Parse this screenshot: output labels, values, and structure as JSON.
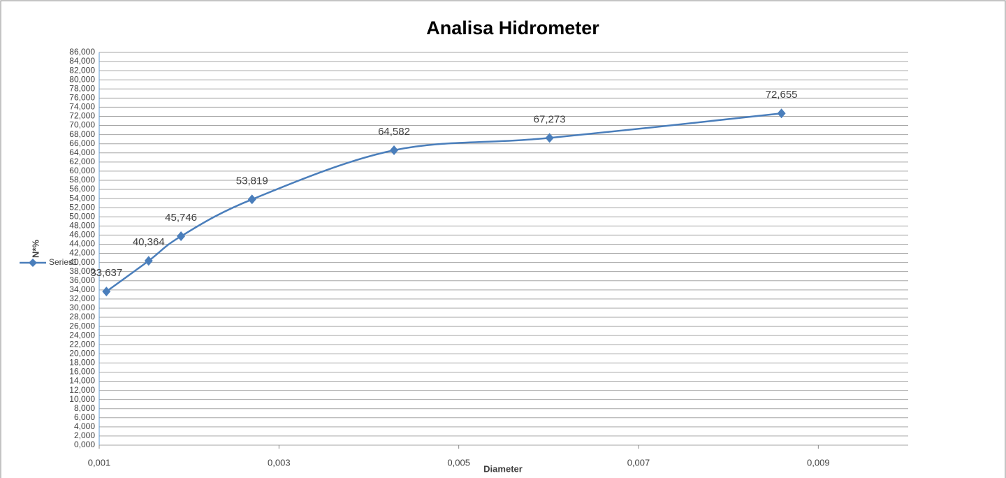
{
  "chart_data": {
    "type": "line",
    "title": "Analisa Hidrometer",
    "xlabel": "Diameter",
    "ylabel": "N*%",
    "x": [
      0.00108,
      0.00155,
      0.00191,
      0.0027,
      0.00428,
      0.00601,
      0.00859
    ],
    "series": [
      {
        "name": "Series1",
        "color": "#4a7ebb",
        "values": [
          33.637,
          40.364,
          45.746,
          53.819,
          64.582,
          67.273,
          72.655
        ],
        "value_labels": [
          "33,637",
          "40,364",
          "45,746",
          "53,819",
          "64,582",
          "67,273",
          "72,655"
        ]
      }
    ],
    "xlim": [
      0.001,
      0.01
    ],
    "xticks": [
      {
        "value": 0.001,
        "label": "0,001"
      },
      {
        "value": 0.003,
        "label": "0,003"
      },
      {
        "value": 0.005,
        "label": "0,005"
      },
      {
        "value": 0.007,
        "label": "0,007"
      },
      {
        "value": 0.009,
        "label": "0,009"
      }
    ],
    "ylim": [
      0,
      86
    ],
    "yticks": [
      {
        "value": 0,
        "label": "0,000"
      },
      {
        "value": 2,
        "label": "2,000"
      },
      {
        "value": 4,
        "label": "4,000"
      },
      {
        "value": 6,
        "label": "6,000"
      },
      {
        "value": 8,
        "label": "8,000"
      },
      {
        "value": 10,
        "label": "10,000"
      },
      {
        "value": 12,
        "label": "12,000"
      },
      {
        "value": 14,
        "label": "14,000"
      },
      {
        "value": 16,
        "label": "16,000"
      },
      {
        "value": 18,
        "label": "18,000"
      },
      {
        "value": 20,
        "label": "20,000"
      },
      {
        "value": 22,
        "label": "22,000"
      },
      {
        "value": 24,
        "label": "24,000"
      },
      {
        "value": 26,
        "label": "26,000"
      },
      {
        "value": 28,
        "label": "28,000"
      },
      {
        "value": 30,
        "label": "30,000"
      },
      {
        "value": 32,
        "label": "32,000"
      },
      {
        "value": 34,
        "label": "34,000"
      },
      {
        "value": 36,
        "label": "36,000"
      },
      {
        "value": 38,
        "label": "38,000"
      },
      {
        "value": 40,
        "label": "40,000"
      },
      {
        "value": 42,
        "label": "42,000"
      },
      {
        "value": 44,
        "label": "44,000"
      },
      {
        "value": 46,
        "label": "46,000"
      },
      {
        "value": 48,
        "label": "48,000"
      },
      {
        "value": 50,
        "label": "50,000"
      },
      {
        "value": 52,
        "label": "52,000"
      },
      {
        "value": 54,
        "label": "54,000"
      },
      {
        "value": 56,
        "label": "56,000"
      },
      {
        "value": 58,
        "label": "58,000"
      },
      {
        "value": 60,
        "label": "60,000"
      },
      {
        "value": 62,
        "label": "62,000"
      },
      {
        "value": 64,
        "label": "64,000"
      },
      {
        "value": 66,
        "label": "66,000"
      },
      {
        "value": 68,
        "label": "68,000"
      },
      {
        "value": 70,
        "label": "70,000"
      },
      {
        "value": 72,
        "label": "72,000"
      },
      {
        "value": 74,
        "label": "74,000"
      },
      {
        "value": 76,
        "label": "76,000"
      },
      {
        "value": 78,
        "label": "78,000"
      },
      {
        "value": 80,
        "label": "80,000"
      },
      {
        "value": 82,
        "label": "82,000"
      },
      {
        "value": 84,
        "label": "84,000"
      },
      {
        "value": 86,
        "label": "86,000"
      }
    ],
    "grid": true,
    "legend": "left"
  }
}
